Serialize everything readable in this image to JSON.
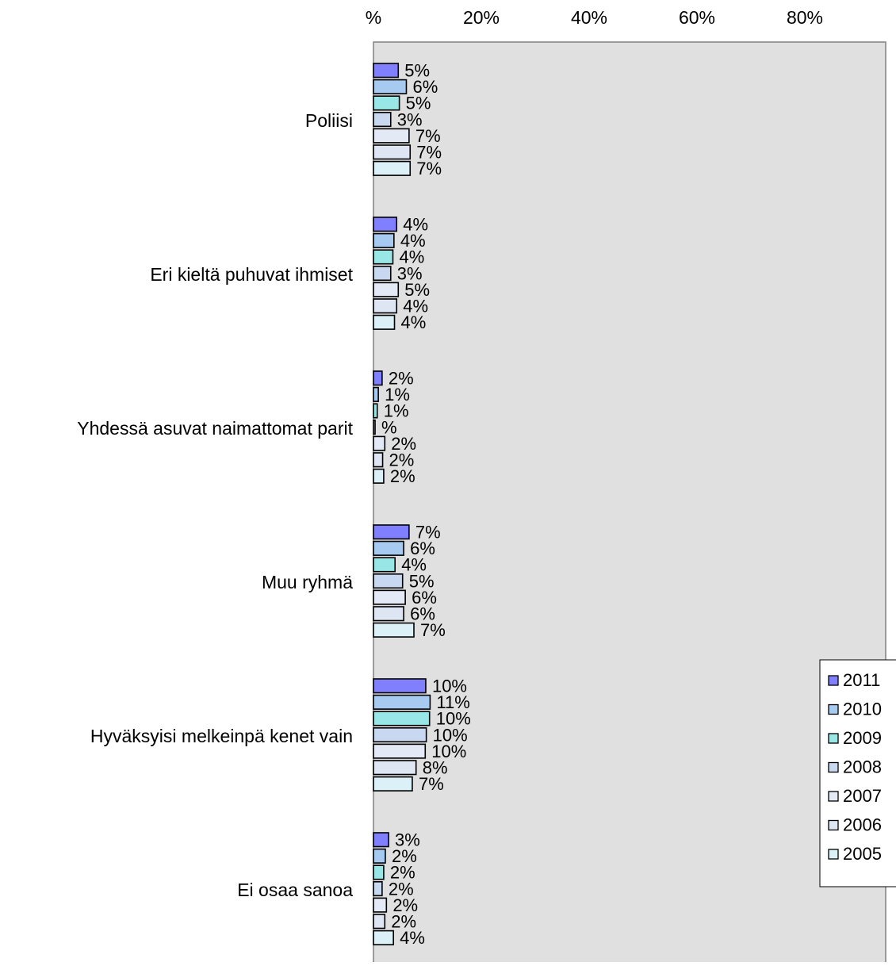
{
  "chart_data": {
    "type": "bar",
    "orientation": "horizontal",
    "x_axis_position": "top",
    "xlim": [
      0,
      95
    ],
    "x_ticks": [
      {
        "value": 0,
        "label": "%"
      },
      {
        "value": 20,
        "label": "20%"
      },
      {
        "value": 40,
        "label": "40%"
      },
      {
        "value": 60,
        "label": "60%"
      },
      {
        "value": 80,
        "label": "80%"
      }
    ],
    "grid": false,
    "legend_position": "right",
    "categories": [
      "Poliisi",
      "Eri kieltä puhuvat ihmiset",
      "Yhdessä asuvat naimattomat parit",
      "Muu ryhmä",
      "Hyväksyisi melkeinpä kenet vain",
      "Ei osaa sanoa"
    ],
    "series": [
      {
        "name": "2011",
        "color": "#8080ff",
        "values": [
          4.6,
          4.3,
          1.6,
          6.6,
          9.7,
          2.8
        ],
        "labels": [
          "5%",
          "4%",
          "2%",
          "7%",
          "10%",
          "3%"
        ]
      },
      {
        "name": "2010",
        "color": "#a6caf0",
        "values": [
          6.1,
          3.8,
          0.9,
          5.6,
          10.5,
          2.2
        ],
        "labels": [
          "6%",
          "4%",
          "1%",
          "6%",
          "11%",
          "2%"
        ]
      },
      {
        "name": "2009",
        "color": "#99e6e6",
        "values": [
          4.8,
          3.6,
          0.7,
          4.0,
          10.4,
          1.9
        ],
        "labels": [
          "5%",
          "4%",
          "1%",
          "4%",
          "10%",
          "2%"
        ]
      },
      {
        "name": "2008",
        "color": "#c7d8f0",
        "values": [
          3.2,
          3.2,
          0.3,
          5.4,
          9.8,
          1.6
        ],
        "labels": [
          "3%",
          "3%",
          "%",
          "5%",
          "10%",
          "2%"
        ]
      },
      {
        "name": "2007",
        "color": "#e3e9f5",
        "values": [
          6.6,
          4.6,
          2.1,
          5.9,
          9.6,
          2.4
        ],
        "labels": [
          "7%",
          "5%",
          "2%",
          "6%",
          "10%",
          "2%"
        ]
      },
      {
        "name": "2006",
        "color": "#dde6f2",
        "values": [
          6.8,
          4.3,
          1.7,
          5.6,
          7.9,
          2.1
        ],
        "labels": [
          "7%",
          "4%",
          "2%",
          "6%",
          "8%",
          "2%"
        ]
      },
      {
        "name": "2005",
        "color": "#dcf0f7",
        "values": [
          6.8,
          3.9,
          1.9,
          7.5,
          7.2,
          3.7
        ],
        "labels": [
          "7%",
          "4%",
          "2%",
          "7%",
          "7%",
          "4%"
        ]
      }
    ]
  }
}
